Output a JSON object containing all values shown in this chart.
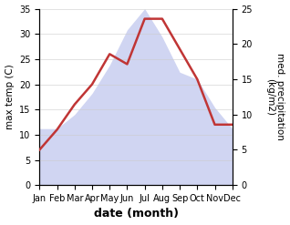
{
  "months": [
    "Jan",
    "Feb",
    "Mar",
    "Apr",
    "May",
    "Jun",
    "Jul",
    "Aug",
    "Sep",
    "Oct",
    "Nov",
    "Dec"
  ],
  "temperature": [
    7,
    11,
    16,
    20,
    26,
    24,
    33,
    33,
    27,
    21,
    12,
    12
  ],
  "precipitation": [
    8,
    8,
    10,
    13,
    17,
    22,
    25,
    21,
    16,
    15,
    11,
    8
  ],
  "temp_color": "#c03535",
  "precip_color": "#aab4e8",
  "ylabel_left": "max temp (C)",
  "ylabel_right": "med. precipitation\n(kg/m2)",
  "xlabel": "date (month)",
  "ylim_left": [
    0,
    35
  ],
  "ylim_right": [
    0,
    25
  ],
  "bg_color": "#ffffff",
  "label_fontsize": 7.5,
  "tick_fontsize": 7,
  "xlabel_fontsize": 9
}
